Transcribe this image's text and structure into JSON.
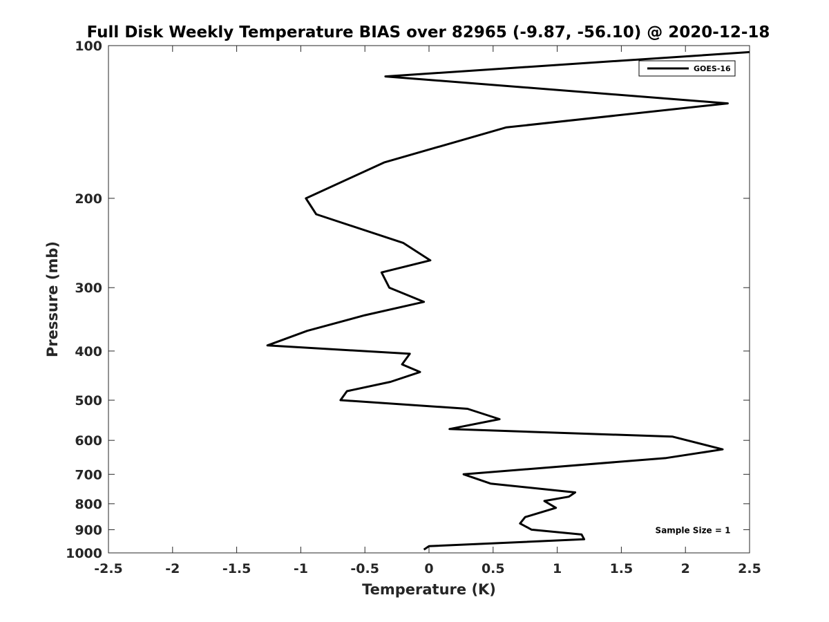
{
  "chart_data": {
    "type": "line",
    "title": "Full Disk Weekly Temperature BIAS over 82965 (-9.87, -56.10) @ 2020-12-18",
    "xlabel": "Temperature (K)",
    "ylabel": "Pressure (mb)",
    "xlim": [
      -2.5,
      2.5
    ],
    "ylim": [
      1000,
      100
    ],
    "yscale": "log",
    "y_reversed": true,
    "x_ticks": [
      -2.5,
      -2,
      -1.5,
      -1,
      -0.5,
      0,
      0.5,
      1,
      1.5,
      2,
      2.5
    ],
    "x_tick_labels": [
      "-2.5",
      "-2",
      "-1.5",
      "-1",
      "-0.5",
      "0",
      "0.5",
      "1",
      "1.5",
      "2",
      "2.5"
    ],
    "y_ticks": [
      100,
      200,
      300,
      400,
      500,
      600,
      700,
      800,
      900,
      1000
    ],
    "y_tick_labels": [
      "100",
      "200",
      "300",
      "400",
      "500",
      "600",
      "700",
      "800",
      "900",
      "1000"
    ],
    "grid": false,
    "legend_position": "top-right",
    "series": [
      {
        "name": "GOES-16",
        "color": "#000000",
        "x": [
          2.5,
          -0.34,
          2.33,
          0.6,
          -0.35,
          -0.96,
          -0.88,
          -0.2,
          0.01,
          -0.37,
          -0.31,
          -0.04,
          -0.5,
          -0.95,
          -1.26,
          -0.15,
          -0.21,
          -0.07,
          -0.3,
          -0.64,
          -0.69,
          0.3,
          0.55,
          0.16,
          1.9,
          2.29,
          1.85,
          0.27,
          0.48,
          1.14,
          1.09,
          0.9,
          0.99,
          0.75,
          0.71,
          0.8,
          1.19,
          1.21,
          0.0,
          -0.04
        ],
        "y": [
          103,
          115,
          130,
          145,
          170,
          200,
          215,
          245,
          265,
          280,
          300,
          320,
          340,
          365,
          390,
          405,
          425,
          440,
          460,
          480,
          500,
          520,
          545,
          570,
          590,
          625,
          650,
          700,
          730,
          760,
          775,
          790,
          815,
          850,
          875,
          900,
          920,
          940,
          970,
          985
        ]
      }
    ],
    "annotation": "Sample Size = 1"
  }
}
